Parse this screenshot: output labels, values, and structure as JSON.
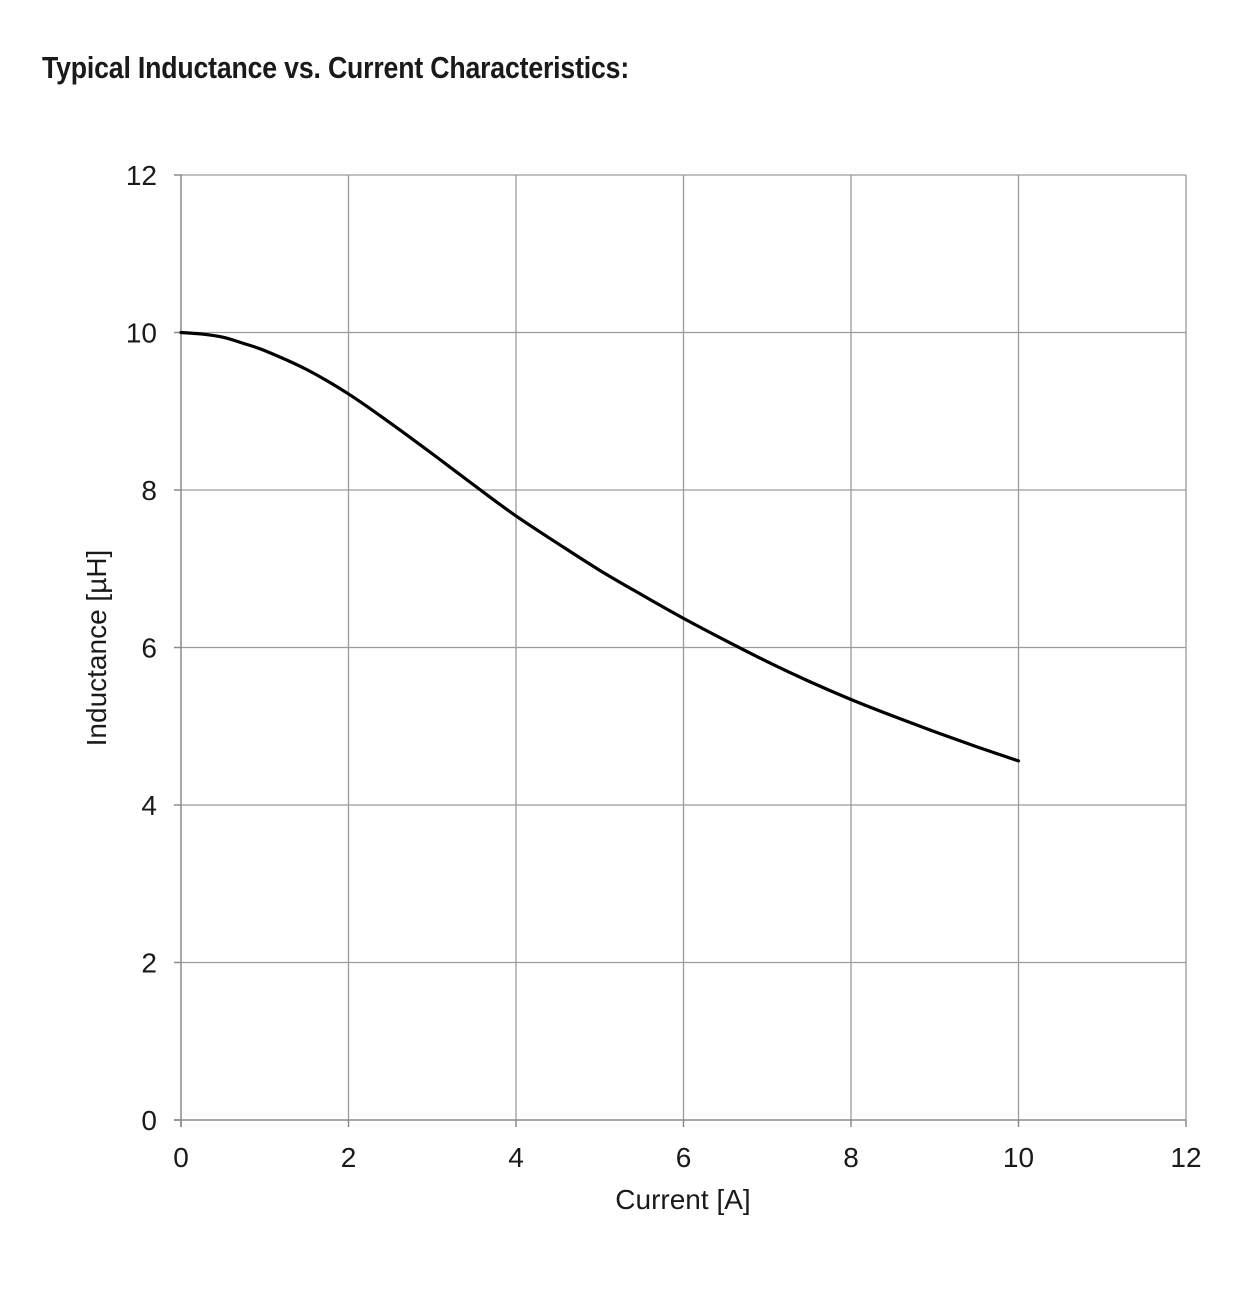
{
  "header": {
    "title": "Typical Inductance vs. Current Characteristics:"
  },
  "chart_data": {
    "type": "line",
    "title": "Typical Inductance vs. Current Characteristics:",
    "xlabel": "Current [A]",
    "ylabel": "Inductance [µH]",
    "xlim": [
      0,
      12
    ],
    "ylim": [
      0,
      12
    ],
    "xticks": [
      0,
      2,
      4,
      6,
      8,
      10,
      12
    ],
    "yticks": [
      0,
      2,
      4,
      6,
      8,
      10,
      12
    ],
    "grid": true,
    "line_color": "#000000",
    "grid_color": "#9a9a9a",
    "series": [
      {
        "x": [
          0,
          0.25,
          0.5,
          0.75,
          1,
          1.5,
          2,
          2.5,
          3,
          3.5,
          4,
          4.5,
          5,
          5.5,
          6,
          6.5,
          7,
          7.5,
          8,
          8.5,
          9,
          9.5,
          10
        ],
        "values": [
          10.0,
          9.98,
          9.94,
          9.86,
          9.77,
          9.53,
          9.22,
          8.85,
          8.46,
          8.06,
          7.67,
          7.32,
          6.98,
          6.67,
          6.37,
          6.09,
          5.82,
          5.57,
          5.34,
          5.13,
          4.93,
          4.74,
          4.56
        ]
      }
    ]
  }
}
